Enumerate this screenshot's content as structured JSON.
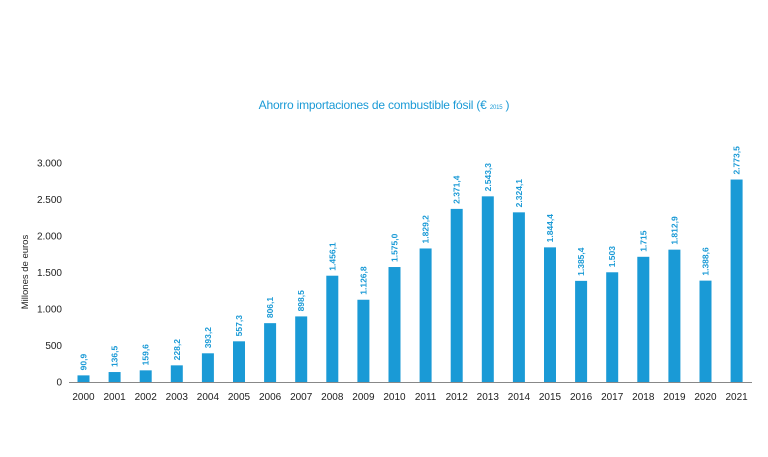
{
  "chart_data": {
    "type": "bar",
    "title": "Ahorro importaciones de combustible fósil",
    "title_unit_open": "(€",
    "title_unit_sub": "2015",
    "title_unit_close": ")",
    "xlabel": "",
    "ylabel": "Millones de euros",
    "ylim": [
      0,
      3000
    ],
    "grid": false,
    "yticks": [
      0,
      500,
      1000,
      1500,
      2000,
      2500,
      3000
    ],
    "ytick_labels": [
      "0",
      "500",
      "1.000",
      "1.500",
      "2.000",
      "2.500",
      "3.000"
    ],
    "categories": [
      "2000",
      "2001",
      "2002",
      "2003",
      "2004",
      "2005",
      "2006",
      "2007",
      "2008",
      "2009",
      "2010",
      "2011",
      "2012",
      "2013",
      "2014",
      "2015",
      "2016",
      "2017",
      "2018",
      "2019",
      "2020",
      "2021"
    ],
    "values": [
      90.9,
      136.5,
      159.6,
      228.2,
      393.2,
      557.3,
      806.1,
      898.5,
      1456.1,
      1126.8,
      1575.0,
      1829.2,
      2371.4,
      2543.3,
      2324.1,
      1844.4,
      1385.4,
      1503,
      1715,
      1812.9,
      1388.6,
      2773.5
    ],
    "value_labels": [
      "90,9",
      "136,5",
      "159,6",
      "228,2",
      "393,2",
      "557,3",
      "806,1",
      "898,5",
      "1.456,1",
      "1.126,8",
      "1.575,0",
      "1.829,2",
      "2.371,4",
      "2.543,3",
      "2.324,1",
      "1.844,4",
      "1.385,4",
      "1.503",
      "1.715",
      "1.812,9",
      "1.388,6",
      "2.773,5"
    ],
    "colors": {
      "bar": "#1a9ad6",
      "axis": "#888888"
    }
  }
}
